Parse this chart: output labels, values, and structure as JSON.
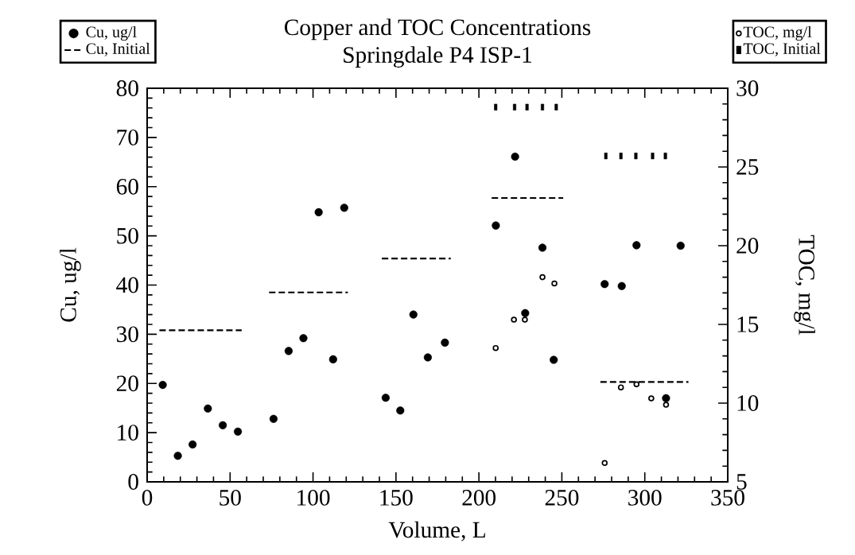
{
  "chart_data": {
    "type": "scatter",
    "title": "Copper and TOC Concentrations",
    "subtitle": "Springdale P4 ISP-1",
    "xlabel": "Volume, L",
    "ylabel": "Cu, ug/l",
    "y2label": "TOC, mg/l",
    "xlim": [
      0,
      350
    ],
    "xticks": [
      0,
      50,
      100,
      150,
      200,
      250,
      300,
      350
    ],
    "ylim": [
      0,
      80
    ],
    "yticks": [
      0,
      10,
      20,
      30,
      40,
      50,
      60,
      70,
      80
    ],
    "y2lim": [
      5,
      30
    ],
    "y2ticks": [
      5,
      10,
      15,
      20,
      25,
      30
    ],
    "legend": "top",
    "series": [
      {
        "name": "Cu, ug/l",
        "color": "#000000",
        "type": "scatter",
        "marker": "circle",
        "x": [
          9.4,
          18.5,
          27.4,
          36.6,
          45.6,
          54.7,
          76.2,
          85.3,
          94.2,
          103.4,
          112.1,
          118.8,
          143.8,
          152.6,
          160.5,
          169.2,
          179.5,
          210.2,
          221.8,
          227.9,
          238.3,
          245.1,
          275.8,
          286.1,
          295.0,
          312.8,
          321.6
        ],
        "values": [
          19.7,
          5.3,
          7.6,
          14.9,
          11.5,
          10.2,
          12.8,
          26.6,
          29.2,
          54.8,
          24.9,
          55.7,
          17.1,
          14.5,
          34.0,
          25.3,
          28.3,
          52.1,
          66.1,
          34.3,
          47.6,
          24.8,
          40.2,
          39.8,
          48.1,
          17.0,
          48.0
        ]
      },
      {
        "name": "Cu, Initial",
        "color": "#000000",
        "type": "line",
        "marker": "none",
        "line_style": "dashed",
        "x": [
          7.4,
          57,
          65,
          73.5,
          121,
          130,
          141.5,
          183,
          195,
          207.7,
          250.8,
          260,
          273.2,
          326.3
        ],
        "values": [
          30.8,
          30.8,
          null,
          38.5,
          38.5,
          null,
          45.4,
          45.4,
          null,
          57.7,
          57.7,
          null,
          20.3,
          20.3
        ]
      },
      {
        "name": "TOC, mg/l",
        "color": "#000000",
        "type": "scatter",
        "marker": "open circle",
        "axis": "y2",
        "x": [
          210.1,
          221.1,
          227.7,
          238.3,
          245.5,
          275.8,
          285.6,
          295.0,
          303.9,
          312.8
        ],
        "values": [
          13.5,
          15.3,
          15.3,
          18.0,
          17.6,
          6.2,
          11.0,
          11.2,
          10.3,
          9.9
        ]
      },
      {
        "name": "TOC, Initial",
        "color": "#000000",
        "type": "scatter",
        "marker": "square",
        "axis": "y2",
        "x": [
          210.1,
          221.5,
          229.0,
          238.3,
          246.6,
          276.5,
          285.6,
          294.6,
          304.7,
          312.4
        ],
        "values": [
          28.8,
          28.8,
          28.8,
          28.8,
          28.8,
          25.7,
          25.7,
          25.7,
          25.7,
          25.7
        ]
      }
    ]
  }
}
